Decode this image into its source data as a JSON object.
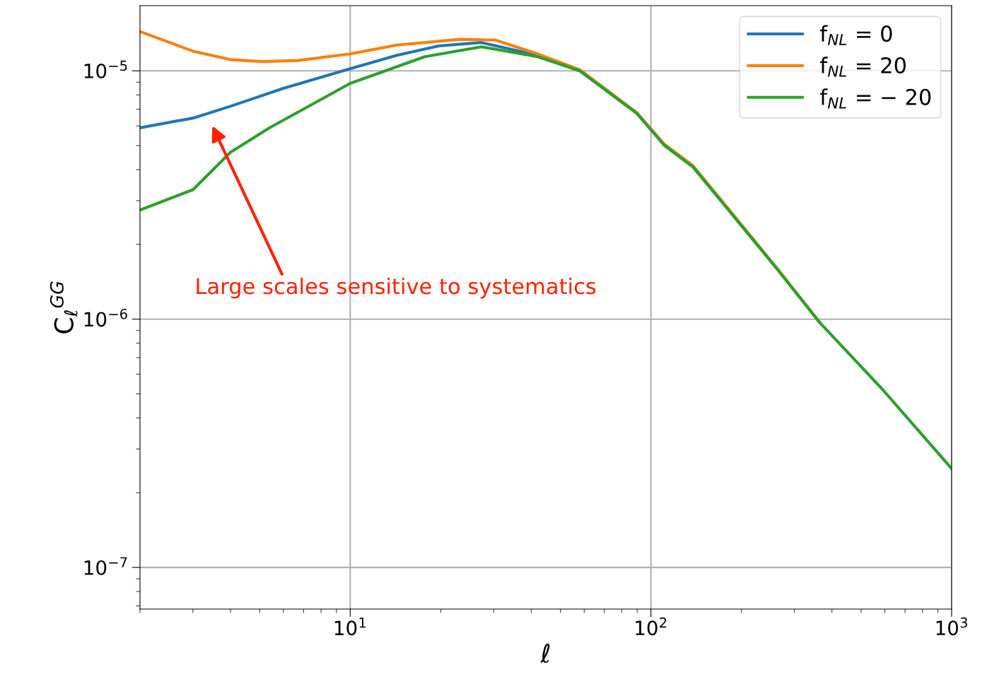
{
  "chart_data": {
    "type": "line",
    "xlabel": "ℓ",
    "ylabel": "C$_{ℓ}$$^{GG}$",
    "log": "xy",
    "grid": true,
    "legend": "top right",
    "xlim": [
      2,
      1000
    ],
    "ylim": [
      6.8e-08,
      1.83e-05
    ],
    "xticks": [
      {
        "value": 10,
        "label": "10$^{1}$"
      },
      {
        "value": 100,
        "label": "10$^{2}$"
      },
      {
        "value": 1000,
        "label": "10$^{3}$"
      }
    ],
    "yticks": [
      {
        "value": 1e-07,
        "label": "10$^{−7}$"
      },
      {
        "value": 1e-06,
        "label": "10$^{−6}$"
      },
      {
        "value": 1e-05,
        "label": "10$^{−5}$"
      }
    ],
    "annotations": [
      "Large scales sensitive to systematics"
    ],
    "series": [
      {
        "name": "f$_{NL}$ = 0",
        "color": "#1f77b4",
        "x": [
          2,
          3,
          4,
          6,
          10,
          14.3,
          19.7,
          27.3,
          42,
          58
        ],
        "values": [
          5.9e-06,
          6.45e-06,
          7.2e-06,
          8.5e-06,
          1.02e-05,
          1.155e-05,
          1.26e-05,
          1.3e-05,
          1.155e-05,
          1e-05
        ]
      },
      {
        "name": "f$_{NL}$ = 20",
        "color": "#ff7f0e",
        "x": [
          2,
          3,
          4,
          5.1,
          6.7,
          10,
          14.3,
          23.2,
          30.4,
          42,
          58,
          89.6,
          111,
          138,
          201,
          263,
          364
        ],
        "values": [
          1.44e-05,
          1.2e-05,
          1.11e-05,
          1.09e-05,
          1.1e-05,
          1.17e-05,
          1.27e-05,
          1.34e-05,
          1.33e-05,
          1.17e-05,
          1.01e-05,
          6.8e-06,
          5.05e-06,
          4.15e-06,
          2.38e-06,
          1.6e-06,
          9.7e-07
        ]
      },
      {
        "name": "f$_{NL}$ = − 20",
        "color": "#2ca02c",
        "x": [
          2,
          3,
          4,
          5.4,
          10,
          17.7,
          27.3,
          42,
          58,
          89.6,
          111,
          138,
          201,
          263,
          364,
          590,
          1000
        ],
        "values": [
          2.75e-06,
          3.32e-06,
          4.7e-06,
          5.9e-06,
          8.9e-06,
          1.14e-05,
          1.25e-05,
          1.14e-05,
          1e-05,
          6.75e-06,
          5e-06,
          4.1e-06,
          2.36e-06,
          1.59e-06,
          9.7e-07,
          5.2e-07,
          2.5e-07
        ]
      }
    ]
  }
}
